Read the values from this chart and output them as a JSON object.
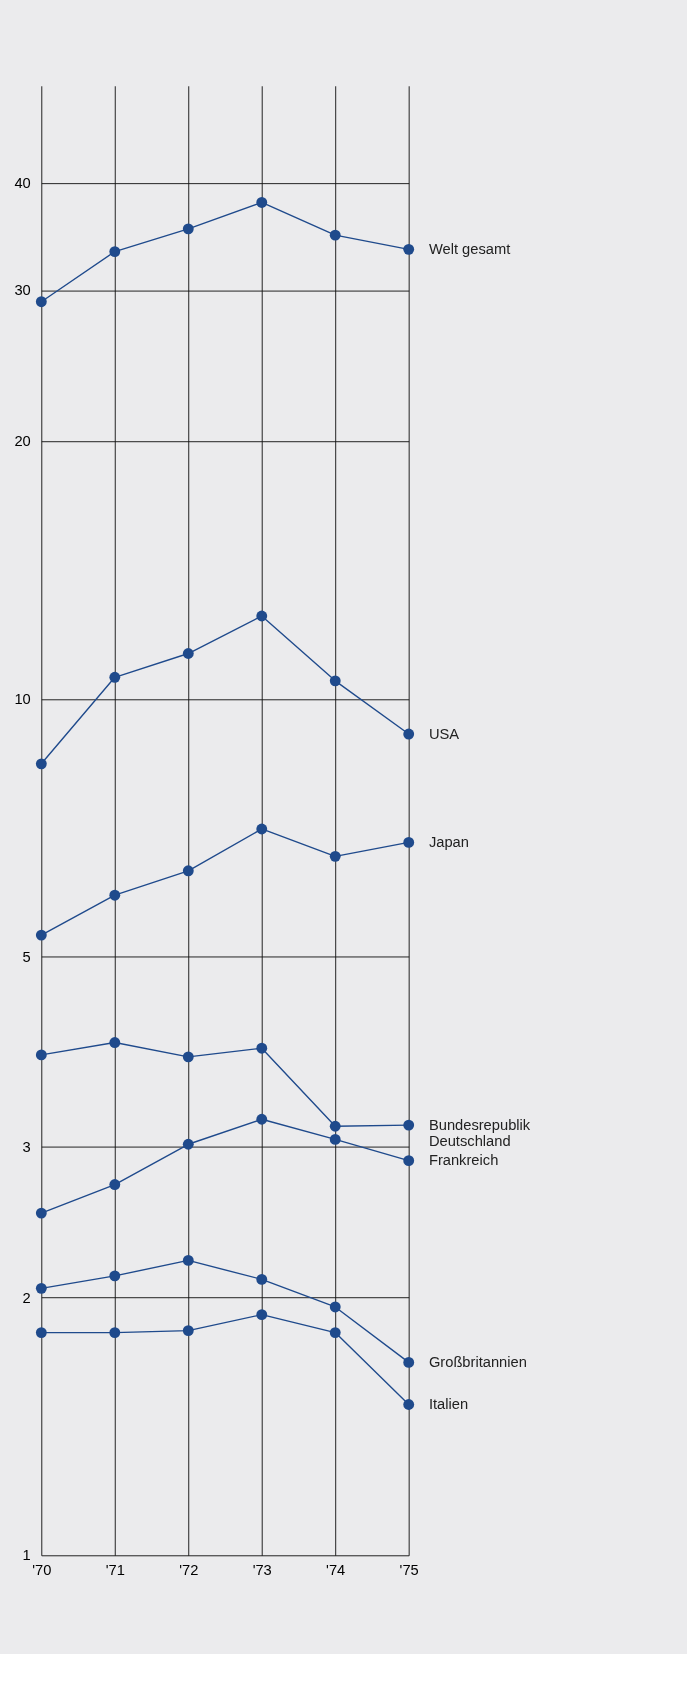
{
  "chart_data": {
    "type": "line",
    "categories": [
      "'70",
      "'71",
      "'72",
      "'73",
      "'74",
      "'75"
    ],
    "series": [
      {
        "name": "Welt gesamt",
        "color": "#1f4a8c",
        "values": [
          29.1,
          33.3,
          35.4,
          38.0,
          34.8,
          33.5
        ]
      },
      {
        "name": "USA",
        "color": "#1f4a8c",
        "values": [
          8.4,
          10.6,
          11.3,
          12.5,
          10.5,
          9.1
        ]
      },
      {
        "name": "Japan",
        "color": "#1f4a8c",
        "values": [
          5.3,
          5.9,
          6.3,
          7.05,
          6.55,
          6.8
        ]
      },
      {
        "name": "Bundesrepublik\nDeutschland",
        "color": "#1f4a8c",
        "values": [
          3.84,
          3.97,
          3.82,
          3.91,
          3.17,
          3.18
        ]
      },
      {
        "name": "Frankreich",
        "color": "#1f4a8c",
        "values": [
          2.51,
          2.71,
          3.02,
          3.23,
          3.06,
          2.89
        ]
      },
      {
        "name": "Großbritannien",
        "color": "#1f4a8c",
        "values": [
          2.05,
          2.12,
          2.21,
          2.1,
          1.95,
          1.68
        ]
      },
      {
        "name": "Italien",
        "color": "#1f4a8c",
        "values": [
          1.82,
          1.82,
          1.83,
          1.91,
          1.82,
          1.5
        ]
      }
    ],
    "log": true,
    "ylim": [
      1,
      52
    ],
    "yticks": [
      1,
      2,
      3,
      5,
      10,
      20,
      30,
      40
    ],
    "grid": true,
    "marker": "circle",
    "line_style": "solid"
  }
}
